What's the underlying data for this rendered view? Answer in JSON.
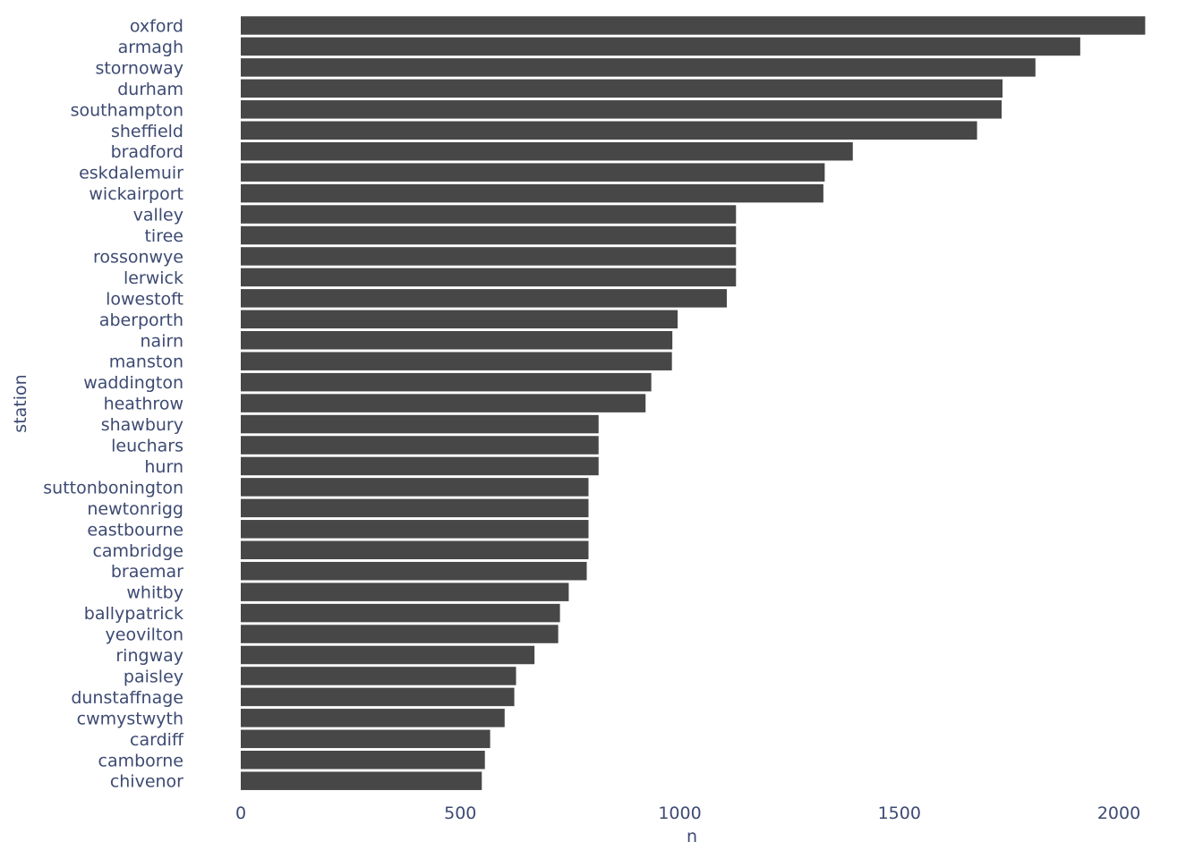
{
  "chart_data": {
    "type": "bar",
    "orientation": "horizontal",
    "xlabel": "n",
    "ylabel": "station",
    "xlim": [
      0,
      2060
    ],
    "xticks": [
      0,
      500,
      1000,
      1500,
      2000
    ],
    "grid": false,
    "legend": "none",
    "bar_color": "#474747",
    "text_color": "#3d4a72",
    "categories": [
      "oxford",
      "armagh",
      "stornoway",
      "durham",
      "southampton",
      "sheffield",
      "bradford",
      "eskdalemuir",
      "wickairport",
      "valley",
      "tiree",
      "rossonwye",
      "lerwick",
      "lowestoft",
      "aberporth",
      "nairn",
      "manston",
      "waddington",
      "heathrow",
      "shawbury",
      "leuchars",
      "hurn",
      "suttonbonington",
      "newtonrigg",
      "eastbourne",
      "cambridge",
      "braemar",
      "whitby",
      "ballypatrick",
      "yeovilton",
      "ringway",
      "paisley",
      "dunstaffnage",
      "cwmystwyth",
      "cardiff",
      "camborne",
      "chivenor"
    ],
    "values": [
      2060,
      1912,
      1810,
      1735,
      1733,
      1677,
      1394,
      1330,
      1327,
      1128,
      1128,
      1128,
      1128,
      1107,
      995,
      983,
      982,
      935,
      922,
      815,
      815,
      815,
      792,
      792,
      792,
      792,
      788,
      747,
      727,
      723,
      669,
      627,
      623,
      601,
      568,
      556,
      549
    ]
  }
}
